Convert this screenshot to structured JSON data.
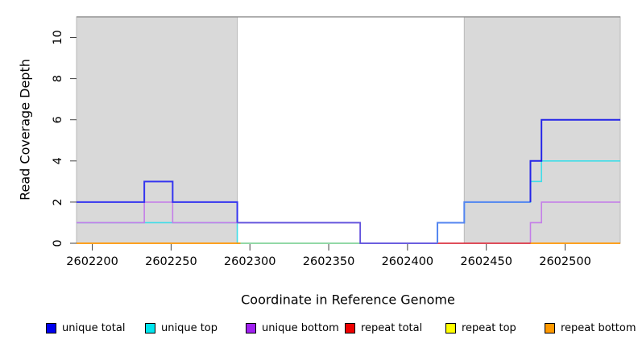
{
  "figure": {
    "x_axis_title": "Coordinate in Reference Genome",
    "y_axis_title": "Read Coverage Depth"
  },
  "chart_data": {
    "type": "line",
    "subtype": "step-coverage-plot",
    "title": "",
    "xlabel": "Coordinate in Reference Genome",
    "ylabel": "Read Coverage Depth",
    "xlim": [
      2602190,
      2602535
    ],
    "ylim": [
      0,
      11.3
    ],
    "grid": false,
    "legend_position": "bottom",
    "x_ticks": [
      2602200,
      2602250,
      2602300,
      2602350,
      2602400,
      2602450,
      2602500
    ],
    "y_ticks": [
      0,
      2,
      4,
      6,
      8,
      10
    ],
    "reference_line_y": 11,
    "shaded_regions": [
      {
        "from": 2602190,
        "to": 2602292,
        "fill": "#d9d9d9"
      },
      {
        "from": 2602436,
        "to": 2602535,
        "fill": "#d9d9d9"
      }
    ],
    "series": [
      {
        "name": "unique total",
        "color": "#0000ee",
        "runs": [
          {
            "from": 2602190,
            "to": 2602233,
            "value": 2
          },
          {
            "from": 2602233,
            "to": 2602251,
            "value": 3
          },
          {
            "from": 2602251,
            "to": 2602292,
            "value": 2
          },
          {
            "from": 2602292,
            "to": 2602370,
            "value": 1
          },
          {
            "from": 2602370,
            "to": 2602419,
            "value": 0
          },
          {
            "from": 2602419,
            "to": 2602436,
            "value": 1
          },
          {
            "from": 2602436,
            "to": 2602478,
            "value": 2
          },
          {
            "from": 2602478,
            "to": 2602485,
            "value": 4
          },
          {
            "from": 2602485,
            "to": 2602535,
            "value": 6
          }
        ]
      },
      {
        "name": "unique top",
        "color": "#00e5ee",
        "runs": [
          {
            "from": 2602190,
            "to": 2602292,
            "value": 1
          },
          {
            "from": 2602292,
            "to": 2602419,
            "value": 0
          },
          {
            "from": 2602419,
            "to": 2602436,
            "value": 1
          },
          {
            "from": 2602436,
            "to": 2602478,
            "value": 2
          },
          {
            "from": 2602478,
            "to": 2602485,
            "value": 3
          },
          {
            "from": 2602485,
            "to": 2602535,
            "value": 4
          }
        ]
      },
      {
        "name": "unique bottom",
        "color": "#a020f0",
        "runs": [
          {
            "from": 2602190,
            "to": 2602233,
            "value": 1
          },
          {
            "from": 2602233,
            "to": 2602251,
            "value": 2
          },
          {
            "from": 2602251,
            "to": 2602370,
            "value": 1
          },
          {
            "from": 2602370,
            "to": 2602478,
            "value": 0
          },
          {
            "from": 2602478,
            "to": 2602485,
            "value": 1
          },
          {
            "from": 2602485,
            "to": 2602535,
            "value": 2
          }
        ]
      },
      {
        "name": "repeat total",
        "color": "#ee0000",
        "runs": [
          {
            "from": 2602190,
            "to": 2602535,
            "value": 0
          }
        ]
      },
      {
        "name": "repeat top",
        "color": "#ffff00",
        "runs": [
          {
            "from": 2602190,
            "to": 2602535,
            "value": 0
          }
        ]
      },
      {
        "name": "repeat bottom",
        "color": "#ff9900",
        "runs": [
          {
            "from": 2602190,
            "to": 2602535,
            "value": 0
          }
        ]
      }
    ],
    "legend": [
      {
        "label": "unique total",
        "color": "#0000ee"
      },
      {
        "label": "unique top",
        "color": "#00e5ee"
      },
      {
        "label": "unique bottom",
        "color": "#a020f0"
      },
      {
        "label": "repeat total",
        "color": "#ee0000"
      },
      {
        "label": "repeat top",
        "color": "#ffff00"
      },
      {
        "label": "repeat bottom",
        "color": "#ff9900"
      }
    ],
    "draw": {
      "region_stroke": "#b9b9b9",
      "reference_line_color": "#8f8f8f",
      "polylines": [
        {
          "name": "unique-top-line",
          "color": "#3fdde8",
          "width": 1.6,
          "pts": [
            [
              2602190,
              1
            ],
            [
              2602292,
              1
            ],
            [
              2602292,
              0
            ],
            [
              2602419,
              0
            ],
            [
              2602419,
              1
            ],
            [
              2602436,
              1
            ],
            [
              2602436,
              2
            ],
            [
              2602478,
              2
            ],
            [
              2602478,
              3
            ],
            [
              2602485,
              3
            ],
            [
              2602485,
              4
            ],
            [
              2602535,
              4
            ]
          ]
        },
        {
          "name": "unique-bottom-line",
          "color": "#c47ee8",
          "width": 1.6,
          "pts": [
            [
              2602190,
              1
            ],
            [
              2602233,
              1
            ],
            [
              2602233,
              2
            ],
            [
              2602251,
              2
            ],
            [
              2602251,
              1
            ],
            [
              2602370,
              1
            ],
            [
              2602370,
              0
            ],
            [
              2602478,
              0
            ],
            [
              2602478,
              1
            ],
            [
              2602485,
              1
            ],
            [
              2602485,
              2
            ],
            [
              2602535,
              2
            ]
          ]
        },
        {
          "name": "baseline-repeat-bottom-left",
          "color": "#ff9500",
          "width": 1.8,
          "pts": [
            [
              2602190,
              0
            ],
            [
              2602294,
              0
            ]
          ]
        },
        {
          "name": "baseline-repeat-blend",
          "color": "#8ed08e",
          "width": 1.4,
          "pts": [
            [
              2602294,
              0
            ],
            [
              2602370,
              0
            ]
          ]
        },
        {
          "name": "baseline-repeat-total",
          "color": "#e02828",
          "width": 1.4,
          "pts": [
            [
              2602419,
              0
            ],
            [
              2602478,
              0
            ]
          ]
        },
        {
          "name": "baseline-repeat-bottom-right",
          "color": "#ff9500",
          "width": 1.8,
          "pts": [
            [
              2602478,
              0
            ],
            [
              2602535,
              0
            ]
          ]
        },
        {
          "name": "unique-total-left",
          "color": "#3434f0",
          "width": 2,
          "pts": [
            [
              2602190,
              2
            ],
            [
              2602233,
              2
            ],
            [
              2602233,
              3
            ],
            [
              2602251,
              3
            ],
            [
              2602251,
              2
            ],
            [
              2602292,
              2
            ],
            [
              2602292,
              1
            ]
          ]
        },
        {
          "name": "unique-total-mid",
          "color": "#6152dd",
          "width": 1.8,
          "pts": [
            [
              2602292,
              1
            ],
            [
              2602370,
              1
            ],
            [
              2602370,
              0
            ],
            [
              2602419,
              0
            ]
          ]
        },
        {
          "name": "unique-total-rise",
          "color": "#5585f0",
          "width": 2,
          "pts": [
            [
              2602419,
              0
            ],
            [
              2602419,
              1
            ],
            [
              2602436,
              1
            ],
            [
              2602436,
              2
            ],
            [
              2602478,
              2
            ]
          ]
        },
        {
          "name": "unique-total-right",
          "color": "#2525e8",
          "width": 2,
          "pts": [
            [
              2602478,
              2
            ],
            [
              2602478,
              4
            ],
            [
              2602485,
              4
            ],
            [
              2602485,
              6
            ],
            [
              2602535,
              6
            ]
          ]
        }
      ]
    }
  }
}
